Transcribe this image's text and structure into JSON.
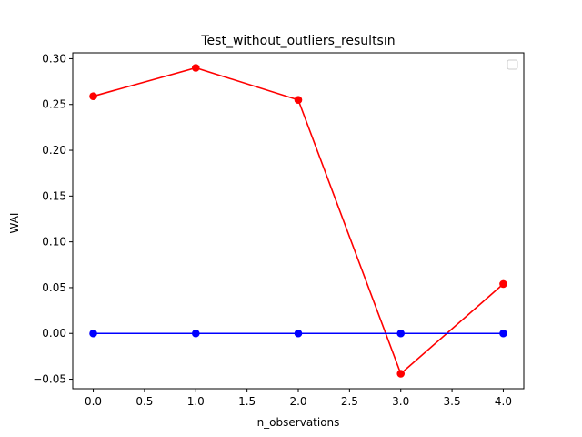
{
  "chart_data": {
    "type": "line",
    "title": "Test_without_outliers_resultsın",
    "xlabel": "n_observations",
    "ylabel": "WAI",
    "xlim": [
      -0.2,
      4.2
    ],
    "ylim": [
      -0.0604,
      0.3064
    ],
    "x_ticks": [
      "0.0",
      "0.5",
      "1.0",
      "1.5",
      "2.0",
      "2.5",
      "3.0",
      "3.5",
      "4.0"
    ],
    "y_ticks": [
      "−0.05",
      "0.00",
      "0.05",
      "0.10",
      "0.15",
      "0.20",
      "0.25",
      "0.30"
    ],
    "grid": false,
    "legend": "top-right, empty",
    "x": [
      0,
      1,
      2,
      3,
      4
    ],
    "series": [
      {
        "color": "#ff0000",
        "marker": "circle",
        "values": [
          0.259,
          0.29,
          0.255,
          -0.044,
          0.054
        ]
      },
      {
        "color": "#0000ff",
        "marker": "circle",
        "values": [
          0.0,
          0.0,
          0.0,
          0.0,
          0.0
        ]
      }
    ]
  }
}
